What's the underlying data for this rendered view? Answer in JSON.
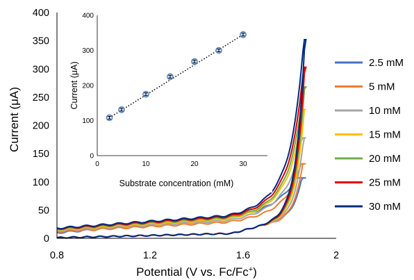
{
  "chart_data": [
    {
      "type": "line",
      "xlabel": "Potential (V vs. Fc/Fc",
      "xlabel_superscript": "+",
      "xlabel_close": ")",
      "ylabel": "Current (μA)",
      "xlim": [
        0.8,
        2.0
      ],
      "ylim": [
        0,
        400
      ],
      "xticks": [
        "0.8",
        "1.2",
        "1.6",
        "2"
      ],
      "xtick_values": [
        0.8,
        1.2,
        1.6,
        2.0
      ],
      "yticks": [
        "0",
        "50",
        "100",
        "150",
        "200",
        "250",
        "300",
        "350",
        "400"
      ],
      "ytick_values": [
        0,
        50,
        100,
        150,
        200,
        250,
        300,
        350,
        400
      ],
      "grid": false,
      "legend_position": "right",
      "series": [
        {
          "name": "2.5 mM",
          "color": "#4472C4",
          "peak": 107,
          "onset": 1.67,
          "upper_start": 10,
          "upper_mid": 37,
          "upper_pre": 58
        },
        {
          "name": "5 mM",
          "color": "#ED7D31",
          "peak": 132,
          "onset": 1.68,
          "upper_start": 12,
          "upper_mid": 30,
          "upper_pre": 48
        },
        {
          "name": "10 mM",
          "color": "#A5A5A5",
          "peak": 178,
          "onset": 1.66,
          "upper_start": 14,
          "upper_mid": 33,
          "upper_pre": 55
        },
        {
          "name": "15 mM",
          "color": "#FFC000",
          "peak": 228,
          "onset": 1.64,
          "upper_start": 15,
          "upper_mid": 36,
          "upper_pre": 60
        },
        {
          "name": "20 mM",
          "color": "#70AD47",
          "peak": 268,
          "onset": 1.63,
          "upper_start": 16,
          "upper_mid": 38,
          "upper_pre": 62
        },
        {
          "name": "25 mM",
          "color": "#E00000",
          "peak": 303,
          "onset": 1.62,
          "upper_start": 17,
          "upper_mid": 40,
          "upper_pre": 66
        },
        {
          "name": "30 mM",
          "color": "#002B7F",
          "peak": 352,
          "onset": 1.6,
          "upper_start": 18,
          "upper_mid": 42,
          "upper_pre": 70
        }
      ],
      "x_end": 1.87
    },
    {
      "type": "scatter",
      "xlabel": "Substrate concentration (mM)",
      "ylabel": "Current (μA)",
      "xlim": [
        0,
        35
      ],
      "ylim": [
        0,
        400
      ],
      "xticks": [
        "0",
        "10",
        "20",
        "30"
      ],
      "xtick_values": [
        0,
        10,
        20,
        30
      ],
      "yticks": [
        "0",
        "100",
        "200",
        "300",
        "400"
      ],
      "ytick_values": [
        0,
        100,
        200,
        300,
        400
      ],
      "grid": false,
      "trendline": "linear, dotted",
      "x": [
        2.5,
        5,
        10,
        15,
        20,
        25,
        30
      ],
      "y": [
        108,
        131,
        175,
        225,
        268,
        300,
        345
      ],
      "error": [
        4,
        4,
        4,
        4,
        4,
        4,
        4
      ],
      "marker_color": "#4A7EBB"
    }
  ]
}
